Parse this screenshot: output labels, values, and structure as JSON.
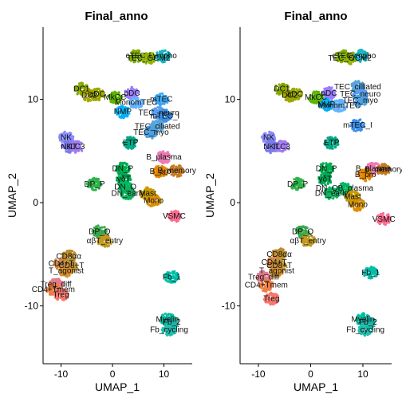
{
  "chart_data": [
    {
      "type": "scatter",
      "title": "Final_anno",
      "xlabel": "UMAP_1",
      "ylabel": "UMAP_2",
      "xlim": [
        -13.5,
        15.5
      ],
      "ylim": [
        -15.6,
        17.0
      ],
      "x_ticks": [
        -10,
        0,
        10
      ],
      "y_ticks": [
        -10,
        0,
        10
      ],
      "grid": false,
      "legend": "none",
      "clusters": [
        {
          "label": "cTEC",
          "x": 4.5,
          "y": 14.2,
          "color": "#7cae00"
        },
        {
          "label": "TEC_GCM2",
          "x": 7.0,
          "y": 14.0,
          "color": "#8fb300"
        },
        {
          "label": "Lympho",
          "x": 9.8,
          "y": 14.2,
          "color": "#19b4c0"
        },
        {
          "label": "DC1",
          "x": -6.0,
          "y": 11.0,
          "color": "#86a800"
        },
        {
          "label": "DC2",
          "x": -4.5,
          "y": 10.4,
          "color": "#a3a500"
        },
        {
          "label": "aDC",
          "x": -3.0,
          "y": 10.5,
          "color": "#9aa900"
        },
        {
          "label": "MkCC",
          "x": 0.5,
          "y": 10.2,
          "color": "#5cb400"
        },
        {
          "label": "pDC",
          "x": 3.8,
          "y": 10.6,
          "color": "#9a7cff"
        },
        {
          "label": "MonomTEC",
          "x": 4.6,
          "y": 9.7,
          "color": "#64b3ff"
        },
        {
          "label": "mTEC",
          "x": 9.5,
          "y": 10.0,
          "color": "#39a6f3"
        },
        {
          "label": "NMP",
          "x": 2.0,
          "y": 8.8,
          "color": "#00b0f6"
        },
        {
          "label": "TEC_neuro",
          "x": 9.0,
          "y": 8.7,
          "color": "#5b9ff0"
        },
        {
          "label": "mTEC_I",
          "x": 10.2,
          "y": 8.4,
          "color": "#3d8fe8"
        },
        {
          "label": "TEC_ciliated",
          "x": 8.7,
          "y": 7.4,
          "color": "#56a4d9"
        },
        {
          "label": "TEC_myo",
          "x": 7.5,
          "y": 6.8,
          "color": "#4fa0e0"
        },
        {
          "label": "NK",
          "x": -9.0,
          "y": 6.3,
          "color": "#8c8cff"
        },
        {
          "label": "NKT",
          "x": -8.5,
          "y": 5.4,
          "color": "#7a7aee"
        },
        {
          "label": "ILC3",
          "x": -7.0,
          "y": 5.4,
          "color": "#a07cf0"
        },
        {
          "label": "ETP",
          "x": 3.5,
          "y": 5.8,
          "color": "#00a884"
        },
        {
          "label": "B_plasma",
          "x": 10.0,
          "y": 4.4,
          "color": "#f07ab4"
        },
        {
          "label": "B_memory",
          "x": 12.5,
          "y": 3.1,
          "color": "#c77c22"
        },
        {
          "label": "B_pro",
          "x": 9.3,
          "y": 3.0,
          "color": "#e58700"
        },
        {
          "label": "DN_P",
          "x": 2.0,
          "y": 3.3,
          "color": "#00b050"
        },
        {
          "label": "DP_P",
          "x": -3.5,
          "y": 1.8,
          "color": "#2eb44a"
        },
        {
          "label": "γδT",
          "x": 2.2,
          "y": 2.3,
          "color": "#00a854"
        },
        {
          "label": "DN_Q",
          "x": 2.5,
          "y": 1.5,
          "color": "#00b860"
        },
        {
          "label": "DN_early",
          "x": 3.0,
          "y": 0.9,
          "color": "#0cb35e"
        },
        {
          "label": "Mast",
          "x": 6.8,
          "y": 0.9,
          "color": "#c99b00"
        },
        {
          "label": "Mono",
          "x": 8.0,
          "y": 0.2,
          "color": "#d89000"
        },
        {
          "label": "VSMC",
          "x": 12.0,
          "y": -1.3,
          "color": "#ff6c91"
        },
        {
          "label": "DP_Q",
          "x": -2.5,
          "y": -2.8,
          "color": "#3aa84e"
        },
        {
          "label": "αβT_entry",
          "x": -1.5,
          "y": -3.7,
          "color": "#c39a20"
        },
        {
          "label": "CD8αα",
          "x": -8.5,
          "y": -5.2,
          "color": "#b88a2a"
        },
        {
          "label": "CD4+T",
          "x": -10.0,
          "y": -5.9,
          "color": "#d3883f"
        },
        {
          "label": "CD8+T",
          "x": -8.0,
          "y": -6.1,
          "color": "#c09432"
        },
        {
          "label": "T_agonist",
          "x": -9.0,
          "y": -6.6,
          "color": "#d5902f"
        },
        {
          "label": "Fb_1",
          "x": 11.5,
          "y": -7.2,
          "color": "#00bfa8"
        },
        {
          "label": "Treg_diff",
          "x": -11.0,
          "y": -7.9,
          "color": "#e07a8c"
        },
        {
          "label": "CD4+Tmem",
          "x": -11.5,
          "y": -8.4,
          "color": "#ee7f45"
        },
        {
          "label": "Treg",
          "x": -10.0,
          "y": -8.9,
          "color": "#f8766d"
        },
        {
          "label": "Myelin",
          "x": 10.7,
          "y": -11.3,
          "color": "#00c1a0"
        },
        {
          "label": "Fb_2",
          "x": 11.5,
          "y": -11.6,
          "color": "#1cb4a6"
        },
        {
          "label": "Fb_cycling",
          "x": 11.0,
          "y": -12.3,
          "color": "#22bfae"
        }
      ]
    },
    {
      "type": "scatter",
      "title": "Final_anno",
      "xlabel": "UMAP_1",
      "ylabel": "UMAP_2",
      "xlim": [
        -13.5,
        15.5
      ],
      "ylim": [
        -15.6,
        17.0
      ],
      "x_ticks": [
        -10,
        0,
        10
      ],
      "y_ticks": [
        -10,
        0,
        10
      ],
      "grid": false,
      "legend": "none",
      "clusters": [
        {
          "label": "cTEC",
          "x": 6.0,
          "y": 14.2,
          "color": "#7cae00"
        },
        {
          "label": "TEC_GCM2",
          "x": 7.5,
          "y": 14.0,
          "color": "#8fb300"
        },
        {
          "label": "Lympho",
          "x": 9.8,
          "y": 14.2,
          "color": "#19b4c0"
        },
        {
          "label": "DC1",
          "x": -5.5,
          "y": 11.0,
          "color": "#86a800"
        },
        {
          "label": "DC2",
          "x": -4.0,
          "y": 10.4,
          "color": "#a3a500"
        },
        {
          "label": "aDC",
          "x": -3.0,
          "y": 10.5,
          "color": "#9aa900"
        },
        {
          "label": "MkCC",
          "x": 1.0,
          "y": 10.2,
          "color": "#5cb400"
        },
        {
          "label": "pDC",
          "x": 3.5,
          "y": 10.6,
          "color": "#9a7cff"
        },
        {
          "label": "TEC_cilliated",
          "x": 9.0,
          "y": 11.2,
          "color": "#56a4d9"
        },
        {
          "label": "TEC_neuro",
          "x": 9.5,
          "y": 10.5,
          "color": "#5b9ff0"
        },
        {
          "label": "TEC_myo",
          "x": 9.5,
          "y": 9.9,
          "color": "#4fa0e0"
        },
        {
          "label": "NMP",
          "x": 3.0,
          "y": 9.5,
          "color": "#00b0f6"
        },
        {
          "label": "MonomTEC",
          "x": 5.5,
          "y": 9.4,
          "color": "#64b3ff"
        },
        {
          "label": "mTEC_I",
          "x": 9.0,
          "y": 7.5,
          "color": "#3d8fe8"
        },
        {
          "label": "NK",
          "x": -8.0,
          "y": 6.3,
          "color": "#8c8cff"
        },
        {
          "label": "NKT",
          "x": -7.5,
          "y": 5.4,
          "color": "#7a7aee"
        },
        {
          "label": "ILC3",
          "x": -5.5,
          "y": 5.4,
          "color": "#a07cf0"
        },
        {
          "label": "ETP",
          "x": 4.0,
          "y": 5.8,
          "color": "#00a884"
        },
        {
          "label": "B_plasma",
          "x": 12.0,
          "y": 3.3,
          "color": "#f07ab4"
        },
        {
          "label": "B_memory",
          "x": 14.0,
          "y": 3.2,
          "color": "#c77c22"
        },
        {
          "label": "B_pro",
          "x": 10.5,
          "y": 2.7,
          "color": "#e58700"
        },
        {
          "label": "DN_P",
          "x": 3.0,
          "y": 3.3,
          "color": "#00b050"
        },
        {
          "label": "DP_P",
          "x": -2.5,
          "y": 1.8,
          "color": "#2eb44a"
        },
        {
          "label": "γδT",
          "x": 2.8,
          "y": 2.3,
          "color": "#00a854"
        },
        {
          "label": "DN_QB_plasma",
          "x": 6.5,
          "y": 1.4,
          "color": "#00b860"
        },
        {
          "label": "DN_early",
          "x": 4.0,
          "y": 0.9,
          "color": "#0cb35e"
        },
        {
          "label": "Mast",
          "x": 8.0,
          "y": 0.6,
          "color": "#c99b00"
        },
        {
          "label": "Mono",
          "x": 9.0,
          "y": -0.2,
          "color": "#d89000"
        },
        {
          "label": "VSMC",
          "x": 14.0,
          "y": -1.6,
          "color": "#ff6c91"
        },
        {
          "label": "DP_Q",
          "x": -1.5,
          "y": -2.8,
          "color": "#3aa84e"
        },
        {
          "label": "αβT_entry",
          "x": -0.5,
          "y": -3.7,
          "color": "#c39a20"
        },
        {
          "label": "CD8αα",
          "x": -6.0,
          "y": -5.0,
          "color": "#b88a2a"
        },
        {
          "label": "CD4+T",
          "x": -7.0,
          "y": -5.8,
          "color": "#d3883f"
        },
        {
          "label": "CD8+T",
          "x": -6.0,
          "y": -6.1,
          "color": "#c09432"
        },
        {
          "label": "T_agonist",
          "x": -6.5,
          "y": -6.6,
          "color": "#d5902f"
        },
        {
          "label": "Fb_1",
          "x": 11.5,
          "y": -6.8,
          "color": "#00bfa8"
        },
        {
          "label": "Treg_diff",
          "x": -9.0,
          "y": -7.2,
          "color": "#e07a8c"
        },
        {
          "label": "CD4+Tmem",
          "x": -8.5,
          "y": -8.0,
          "color": "#ee7f45"
        },
        {
          "label": "Treg",
          "x": -7.5,
          "y": -9.3,
          "color": "#f8766d"
        },
        {
          "label": "Myelin",
          "x": 10.0,
          "y": -11.3,
          "color": "#00c1a0"
        },
        {
          "label": "Fb_2",
          "x": 11.0,
          "y": -11.6,
          "color": "#1cb4a6"
        },
        {
          "label": "Fb_cycling",
          "x": 10.5,
          "y": -12.3,
          "color": "#22bfae"
        }
      ]
    }
  ]
}
